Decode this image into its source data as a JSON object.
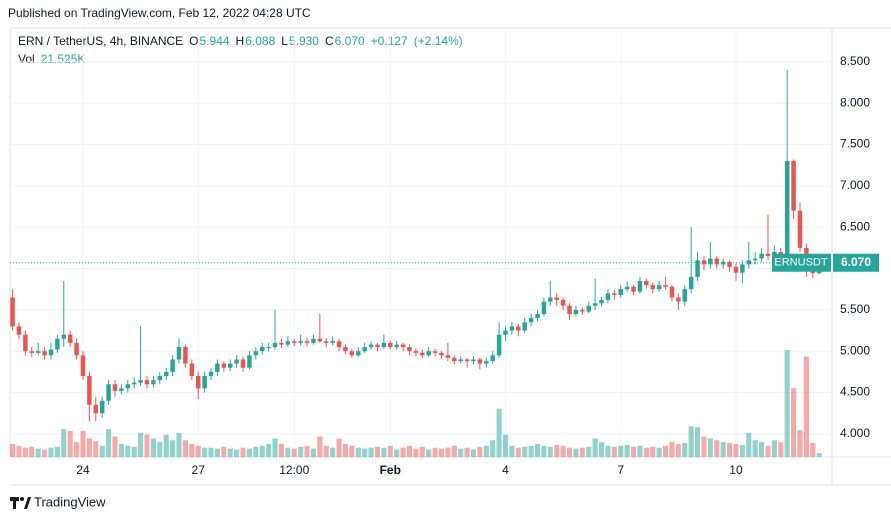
{
  "published": "Published on TradingView.com, Feb 12, 2022 04:28 UTC",
  "brand": "TradingView",
  "chart_data": {
    "type": "candlestick",
    "legend": {
      "symbol": "ERN / TetherUS, 4h, BINANCE",
      "ohlc_keys": [
        "O",
        "H",
        "L",
        "C"
      ],
      "ohlc": [
        {
          "value": 5.944,
          "label": "5.944"
        },
        {
          "value": 6.088,
          "label": "6.088"
        },
        {
          "value": 5.93,
          "label": "5.930"
        },
        {
          "value": 6.07,
          "label": "6.070"
        }
      ],
      "change": {
        "value": 0.127,
        "label": "+0.127"
      },
      "change_pct": {
        "value": 2.14,
        "label": "(+2.14%)"
      },
      "volume_name": "Vol",
      "volume": {
        "value": 21525,
        "label": "21.525K"
      }
    },
    "symbol_tag": "ERNUSDT",
    "last_price": {
      "value": 6.07,
      "label": "6.070"
    },
    "up_color": "#26a69a",
    "down_color": "#ef5350",
    "grid": true,
    "ylim": [
      3.72,
      8.91
    ],
    "yticks": [
      {
        "value": 4,
        "label": "4.000"
      },
      {
        "value": 4.5,
        "label": "4.500"
      },
      {
        "value": 5,
        "label": "5.000"
      },
      {
        "value": 5.5,
        "label": "5.500"
      },
      {
        "value": 6,
        "label": "6.000"
      },
      {
        "value": 6.5,
        "label": "6.500"
      },
      {
        "value": 7,
        "label": "7.000"
      },
      {
        "value": 7.5,
        "label": "7.500"
      },
      {
        "value": 8,
        "label": "8.000"
      },
      {
        "value": 8.5,
        "label": "8.500"
      }
    ],
    "xlim": [
      -0.4,
      128
    ],
    "xticks": [
      {
        "value": 11,
        "label": "24"
      },
      {
        "value": 29,
        "label": "27"
      },
      {
        "value": 44,
        "label": "12:00"
      },
      {
        "value": 59,
        "label": "Feb"
      },
      {
        "value": 77,
        "label": "4"
      },
      {
        "value": 95,
        "label": "7"
      },
      {
        "value": 113,
        "label": "10"
      }
    ],
    "candles": [
      [
        5.65,
        5.75,
        5.25,
        5.3
      ],
      [
        5.3,
        5.35,
        5.15,
        5.2
      ],
      [
        5.2,
        5.25,
        4.95,
        5.0
      ],
      [
        5.0,
        5.05,
        4.93,
        4.98
      ],
      [
        4.98,
        5.1,
        4.95,
        5.0
      ],
      [
        5.0,
        5.05,
        4.9,
        4.95
      ],
      [
        4.95,
        5.1,
        4.9,
        5.02
      ],
      [
        5.02,
        5.2,
        4.98,
        5.15
      ],
      [
        5.15,
        5.85,
        5.05,
        5.2
      ],
      [
        5.2,
        5.25,
        5.05,
        5.1
      ],
      [
        5.1,
        5.15,
        4.9,
        4.95
      ],
      [
        4.95,
        5.0,
        4.65,
        4.7
      ],
      [
        4.7,
        4.75,
        4.15,
        4.35
      ],
      [
        4.35,
        4.45,
        4.15,
        4.25
      ],
      [
        4.25,
        4.45,
        4.2,
        4.4
      ],
      [
        4.4,
        4.65,
        4.35,
        4.6
      ],
      [
        4.6,
        4.65,
        4.45,
        4.52
      ],
      [
        4.52,
        4.6,
        4.48,
        4.55
      ],
      [
        4.55,
        4.65,
        4.5,
        4.6
      ],
      [
        4.6,
        4.68,
        4.55,
        4.62
      ],
      [
        4.62,
        5.3,
        4.58,
        4.65
      ],
      [
        4.65,
        4.7,
        4.55,
        4.6
      ],
      [
        4.6,
        4.7,
        4.56,
        4.65
      ],
      [
        4.65,
        4.75,
        4.6,
        4.7
      ],
      [
        4.7,
        4.8,
        4.65,
        4.75
      ],
      [
        4.75,
        4.95,
        4.7,
        4.9
      ],
      [
        4.9,
        5.15,
        4.85,
        5.05
      ],
      [
        5.05,
        5.08,
        4.8,
        4.85
      ],
      [
        4.85,
        4.9,
        4.65,
        4.7
      ],
      [
        4.7,
        4.75,
        4.42,
        4.55
      ],
      [
        4.55,
        4.75,
        4.5,
        4.7
      ],
      [
        4.7,
        4.8,
        4.65,
        4.75
      ],
      [
        4.75,
        4.9,
        4.7,
        4.85
      ],
      [
        4.85,
        4.88,
        4.75,
        4.8
      ],
      [
        4.8,
        4.9,
        4.76,
        4.85
      ],
      [
        4.85,
        4.95,
        4.8,
        4.9
      ],
      [
        4.9,
        4.93,
        4.75,
        4.8
      ],
      [
        4.8,
        5.0,
        4.78,
        4.95
      ],
      [
        4.95,
        5.05,
        4.9,
        5.0
      ],
      [
        5.0,
        5.1,
        4.96,
        5.05
      ],
      [
        5.05,
        5.1,
        5.0,
        5.05
      ],
      [
        5.05,
        5.5,
        5.02,
        5.1
      ],
      [
        5.1,
        5.15,
        5.04,
        5.08
      ],
      [
        5.08,
        5.18,
        5.05,
        5.12
      ],
      [
        5.12,
        5.15,
        5.06,
        5.1
      ],
      [
        5.1,
        5.2,
        5.07,
        5.12
      ],
      [
        5.12,
        5.16,
        5.06,
        5.1
      ],
      [
        5.1,
        5.2,
        5.08,
        5.15
      ],
      [
        5.15,
        5.45,
        5.1,
        5.12
      ],
      [
        5.12,
        5.16,
        5.05,
        5.1
      ],
      [
        5.1,
        5.18,
        5.07,
        5.12
      ],
      [
        5.12,
        5.15,
        5.0,
        5.05
      ],
      [
        5.05,
        5.08,
        4.96,
        5.0
      ],
      [
        5.0,
        5.03,
        4.92,
        4.95
      ],
      [
        4.95,
        5.05,
        4.93,
        5.0
      ],
      [
        5.0,
        5.1,
        4.98,
        5.05
      ],
      [
        5.05,
        5.12,
        5.02,
        5.08
      ],
      [
        5.08,
        5.1,
        5.0,
        5.05
      ],
      [
        5.05,
        5.2,
        5.03,
        5.1
      ],
      [
        5.1,
        5.13,
        5.02,
        5.05
      ],
      [
        5.05,
        5.12,
        5.02,
        5.08
      ],
      [
        5.08,
        5.1,
        5.0,
        5.05
      ],
      [
        5.05,
        5.08,
        4.95,
        5.0
      ],
      [
        5.0,
        5.03,
        4.94,
        4.98
      ],
      [
        4.98,
        5.02,
        4.92,
        4.95
      ],
      [
        4.95,
        5.05,
        4.93,
        5.0
      ],
      [
        5.0,
        5.03,
        4.94,
        4.98
      ],
      [
        4.98,
        5.0,
        4.91,
        4.95
      ],
      [
        4.95,
        5.1,
        4.88,
        4.92
      ],
      [
        4.92,
        4.95,
        4.84,
        4.88
      ],
      [
        4.88,
        4.94,
        4.85,
        4.9
      ],
      [
        4.9,
        4.92,
        4.8,
        4.88
      ],
      [
        4.88,
        4.94,
        4.84,
        4.9
      ],
      [
        4.9,
        4.92,
        4.78,
        4.85
      ],
      [
        4.85,
        4.92,
        4.8,
        4.88
      ],
      [
        4.88,
        5.0,
        4.85,
        4.95
      ],
      [
        4.95,
        5.35,
        4.92,
        5.2
      ],
      [
        5.2,
        5.3,
        5.12,
        5.25
      ],
      [
        5.25,
        5.35,
        5.2,
        5.3
      ],
      [
        5.3,
        5.33,
        5.18,
        5.25
      ],
      [
        5.25,
        5.4,
        5.22,
        5.35
      ],
      [
        5.35,
        5.45,
        5.3,
        5.4
      ],
      [
        5.4,
        5.5,
        5.36,
        5.45
      ],
      [
        5.45,
        5.65,
        5.42,
        5.6
      ],
      [
        5.6,
        5.85,
        5.55,
        5.65
      ],
      [
        5.65,
        5.7,
        5.55,
        5.62
      ],
      [
        5.62,
        5.65,
        5.5,
        5.55
      ],
      [
        5.55,
        5.58,
        5.38,
        5.45
      ],
      [
        5.45,
        5.55,
        5.42,
        5.5
      ],
      [
        5.5,
        5.53,
        5.44,
        5.48
      ],
      [
        5.48,
        5.6,
        5.46,
        5.55
      ],
      [
        5.55,
        5.88,
        5.5,
        5.58
      ],
      [
        5.58,
        5.66,
        5.54,
        5.62
      ],
      [
        5.62,
        5.75,
        5.58,
        5.7
      ],
      [
        5.7,
        5.74,
        5.62,
        5.68
      ],
      [
        5.68,
        5.8,
        5.65,
        5.75
      ],
      [
        5.75,
        5.84,
        5.72,
        5.78
      ],
      [
        5.78,
        5.8,
        5.68,
        5.72
      ],
      [
        5.72,
        5.9,
        5.7,
        5.85
      ],
      [
        5.85,
        5.88,
        5.76,
        5.8
      ],
      [
        5.8,
        5.83,
        5.7,
        5.75
      ],
      [
        5.75,
        5.85,
        5.72,
        5.8
      ],
      [
        5.8,
        5.9,
        5.74,
        5.78
      ],
      [
        5.78,
        5.8,
        5.6,
        5.65
      ],
      [
        5.65,
        5.7,
        5.5,
        5.6
      ],
      [
        5.6,
        5.8,
        5.55,
        5.75
      ],
      [
        5.75,
        6.5,
        5.7,
        5.9
      ],
      [
        5.9,
        6.2,
        5.85,
        6.1
      ],
      [
        6.1,
        6.15,
        5.98,
        6.05
      ],
      [
        6.05,
        6.32,
        6.0,
        6.12
      ],
      [
        6.12,
        6.15,
        6.0,
        6.05
      ],
      [
        6.05,
        6.12,
        6.0,
        6.08
      ],
      [
        6.08,
        6.1,
        5.96,
        6.02
      ],
      [
        6.02,
        6.06,
        5.85,
        5.95
      ],
      [
        5.95,
        6.1,
        5.82,
        6.05
      ],
      [
        6.05,
        6.32,
        6.0,
        6.1
      ],
      [
        6.1,
        6.2,
        6.05,
        6.12
      ],
      [
        6.12,
        6.25,
        6.08,
        6.18
      ],
      [
        6.18,
        6.65,
        6.1,
        6.15
      ],
      [
        6.15,
        6.28,
        6.1,
        6.2
      ],
      [
        6.2,
        6.25,
        6.05,
        6.1
      ],
      [
        6.1,
        8.4,
        6.08,
        7.3
      ],
      [
        7.3,
        7.32,
        6.6,
        6.7
      ],
      [
        6.7,
        6.8,
        6.2,
        6.25
      ],
      [
        6.25,
        6.3,
        5.9,
        6.0
      ],
      [
        6.0,
        6.05,
        5.88,
        5.944
      ],
      [
        5.944,
        6.088,
        5.93,
        6.07
      ]
    ],
    "volumes": [
      70000,
      60000,
      50000,
      55000,
      45000,
      40000,
      50000,
      55000,
      150000,
      140000,
      80000,
      140000,
      100000,
      85000,
      60000,
      150000,
      110000,
      70000,
      60000,
      55000,
      130000,
      120000,
      100000,
      80000,
      120000,
      90000,
      130000,
      90000,
      70000,
      60000,
      50000,
      50000,
      45000,
      55000,
      45000,
      40000,
      50000,
      45000,
      55000,
      60000,
      70000,
      100000,
      70000,
      50000,
      45000,
      55000,
      60000,
      45000,
      110000,
      60000,
      50000,
      100000,
      70000,
      60000,
      50000,
      45000,
      50000,
      55000,
      50000,
      60000,
      40000,
      50000,
      60000,
      45000,
      55000,
      40000,
      50000,
      45000,
      50000,
      60000,
      45000,
      50000,
      40000,
      55000,
      60000,
      90000,
      260000,
      120000,
      60000,
      50000,
      55000,
      60000,
      70000,
      60000,
      55000,
      65000,
      60000,
      50000,
      45000,
      50000,
      55000,
      100000,
      80000,
      60000,
      55000,
      60000,
      65000,
      55000,
      60000,
      50000,
      55000,
      50000,
      60000,
      80000,
      70000,
      75000,
      165000,
      160000,
      110000,
      100000,
      90000,
      80000,
      75000,
      70000,
      65000,
      130000,
      90000,
      80000,
      60000,
      90000,
      80000,
      575000,
      370000,
      145000,
      540000,
      75000,
      21525
    ]
  }
}
